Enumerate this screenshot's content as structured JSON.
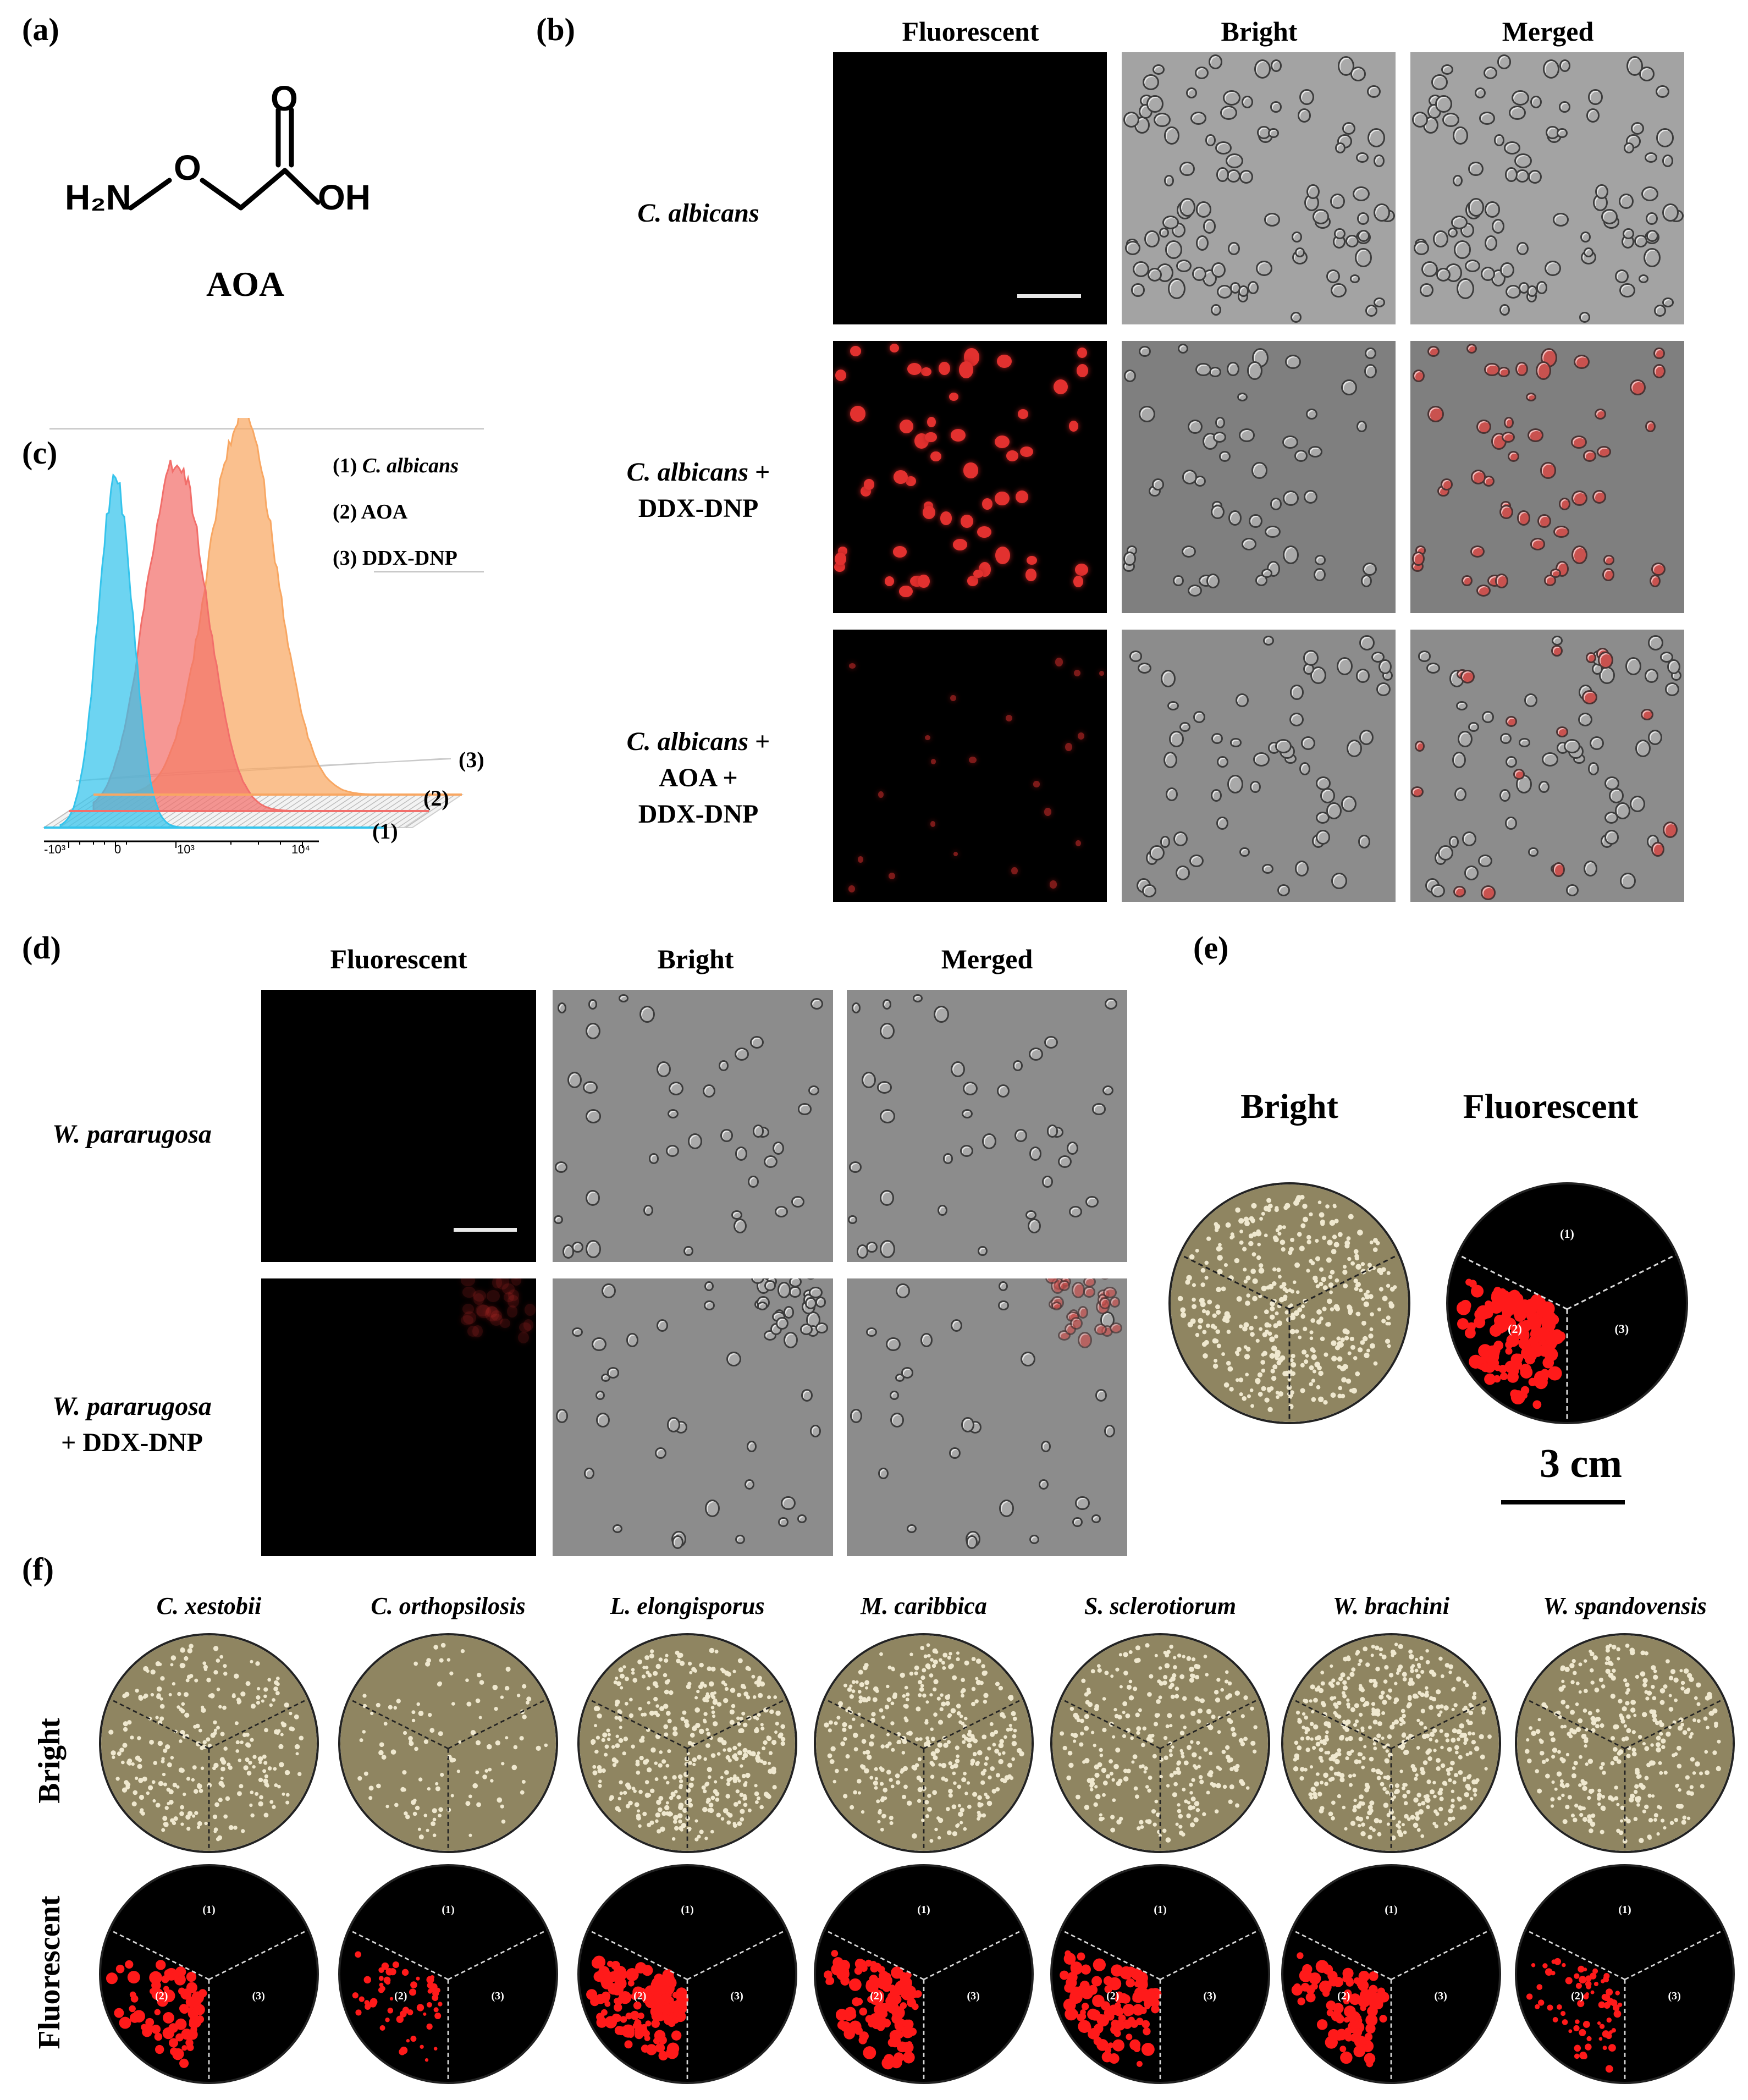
{
  "panel_labels": {
    "a": "(a)",
    "b": "(b)",
    "c": "(c)",
    "d": "(d)",
    "e": "(e)",
    "f": "(f)"
  },
  "panel_a": {
    "atom_o": "O",
    "atom_h2n": "H₂N",
    "atom_o2": "O",
    "atom_oh": "OH",
    "name": "AOA"
  },
  "panel_b": {
    "columns": [
      "Fluorescent",
      "Bright",
      "Merged"
    ],
    "rows": [
      {
        "species": "C. albicans",
        "suffix_line1": "",
        "line2": "",
        "line3": ""
      },
      {
        "species": "C. albicans",
        "suffix_line1": "+",
        "line2": "DDX-DNP",
        "line3": ""
      },
      {
        "species": "C. albicans",
        "suffix_line1": "+",
        "line2": "AOA +",
        "line3": "DDX-DNP"
      }
    ]
  },
  "panel_c": {
    "legend": [
      {
        "num": "(1)",
        "label": "C. albicans"
      },
      {
        "num": "(2)",
        "label": "AOA"
      },
      {
        "num": "(3)",
        "label": "DDX-DNP"
      }
    ],
    "trace_labels": [
      "(1)",
      "(2)",
      "(3)"
    ],
    "tick_labels": [
      "-10³",
      "0",
      "10³",
      "10⁴"
    ],
    "colors": {
      "c1": "#35c4ec",
      "c2": "#f26f6b",
      "c3": "#f8a763"
    }
  },
  "chart_data": {
    "type": "area",
    "title": "",
    "xlabel": "",
    "ylabel": "",
    "x_ticks": [
      "-10³",
      "0",
      "10³",
      "10⁴"
    ],
    "series": [
      {
        "name": "(1) C. albicans",
        "peak_x": "0"
      },
      {
        "name": "(2) AOA",
        "peak_x": "10³"
      },
      {
        "name": "(3) DDX-DNP",
        "peak_x": "between 10³ and 10⁴"
      }
    ]
  },
  "panel_d": {
    "columns": [
      "Fluorescent",
      "Bright",
      "Merged"
    ],
    "rows": [
      {
        "species": "W. pararugosa",
        "line2": ""
      },
      {
        "species": "W. pararugosa",
        "line2": "+ DDX-DNP"
      }
    ]
  },
  "panel_e": {
    "columns": [
      "Bright",
      "Fluorescent"
    ],
    "sectors": [
      "(1)",
      "(2)",
      "(3)"
    ],
    "scale_label": "3 cm"
  },
  "panel_f": {
    "row_labels": [
      "Bright",
      "Fluorescent"
    ],
    "species": [
      "C. xestobii",
      "C. orthopsilosis",
      "L. elongisporus",
      "M. caribbica",
      "S. sclerotiorum",
      "W. brachini",
      "W. spandovensis"
    ],
    "sectors": [
      "(1)",
      "(2)",
      "(3)"
    ]
  }
}
